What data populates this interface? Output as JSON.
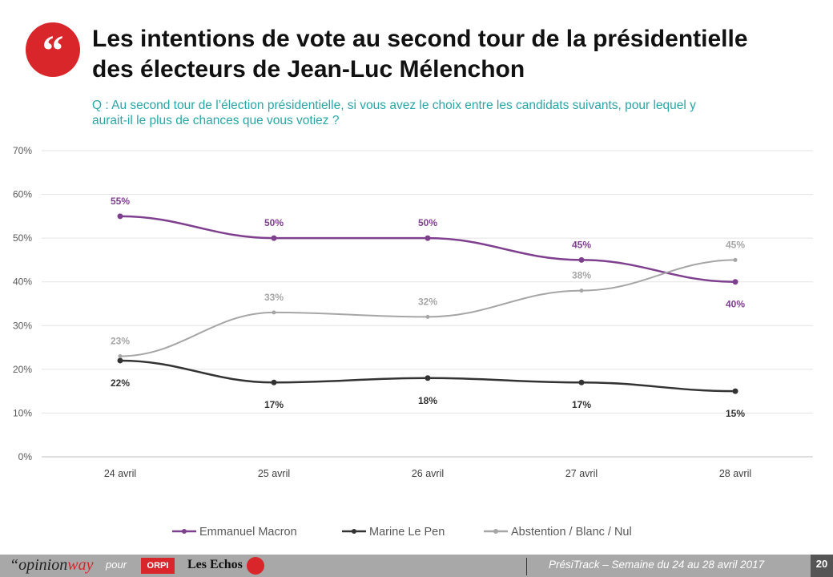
{
  "header": {
    "title_line1": "Les intentions de vote au second tour de la présidentielle",
    "title_line2": "des électeurs de Jean-Luc Mélenchon",
    "question": "Q : Au second tour de l’élection présidentielle, si vous avez le choix entre les candidats suivants, pour lequel y aurait-il le plus de chances que vous votiez ?",
    "logo_icon": "quote-icon"
  },
  "footer": {
    "brand_a": "“opinion",
    "brand_b": "way",
    "pour": "pour",
    "orpi": "ORPI",
    "echos": "Les Echos",
    "track": "PrésiTrack – Semaine du 24 au 28 avril 2017",
    "page": "20"
  },
  "chart_data": {
    "type": "line",
    "title": "",
    "categories": [
      "24 avril",
      "25 avril",
      "26 avril",
      "27 avril",
      "28 avril"
    ],
    "ylim": [
      0,
      70
    ],
    "yticks": [
      "0%",
      "10%",
      "20%",
      "30%",
      "40%",
      "50%",
      "60%",
      "70%"
    ],
    "grid": true,
    "legend": "bottom",
    "series": [
      {
        "name": "Emmanuel Macron",
        "values": [
          55,
          50,
          50,
          45,
          40
        ],
        "color": "#7f3f8f",
        "labels_pos": [
          "above",
          "above",
          "above",
          "above",
          "below"
        ]
      },
      {
        "name": "Marine Le Pen",
        "values": [
          22,
          17,
          18,
          17,
          15
        ],
        "color": "#333333",
        "labels_pos": [
          "below",
          "below",
          "below",
          "below",
          "below"
        ]
      },
      {
        "name": "Abstention / Blanc / Nul",
        "values": [
          23,
          33,
          32,
          38,
          45
        ],
        "color": "#a6a6a6",
        "labels_pos": [
          "above",
          "above",
          "above",
          "above",
          "above"
        ]
      }
    ]
  }
}
